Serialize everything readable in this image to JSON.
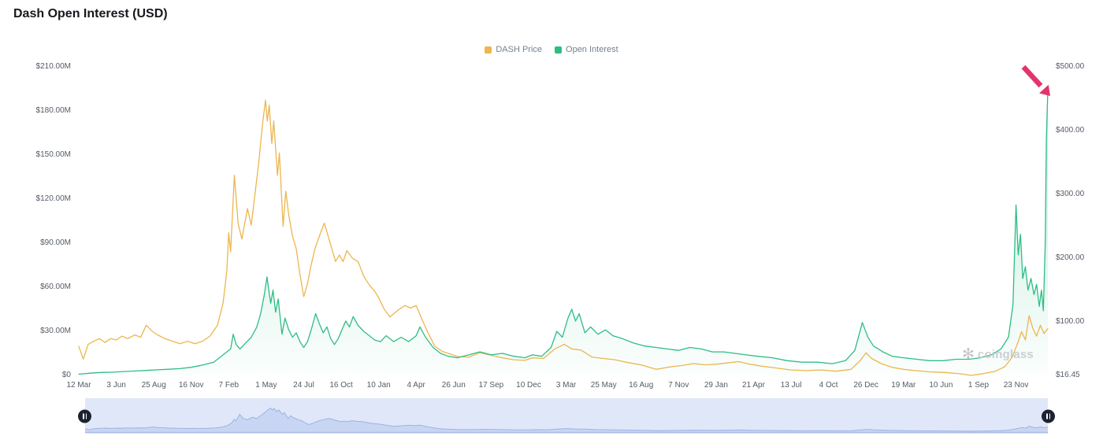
{
  "title": "Dash Open Interest (USD)",
  "watermark": "coinglass",
  "legend": [
    {
      "label": "DASH Price",
      "color": "#ecb64d"
    },
    {
      "label": "Open Interest",
      "color": "#2ebd85"
    }
  ],
  "chart_data": {
    "type": "line",
    "title": "Dash Open Interest (USD)",
    "t_max": 25.85,
    "left_axis": {
      "min": 0,
      "max": 210,
      "unit": "millions USD",
      "ticks": [
        {
          "value": 210,
          "label": "$210.00M"
        },
        {
          "value": 180,
          "label": "$180.00M"
        },
        {
          "value": 150,
          "label": "$150.00M"
        },
        {
          "value": 120,
          "label": "$120.00M"
        },
        {
          "value": 90,
          "label": "$90.00M"
        },
        {
          "value": 60,
          "label": "$60.00M"
        },
        {
          "value": 30,
          "label": "$30.00M"
        },
        {
          "value": 0,
          "label": "$0"
        }
      ]
    },
    "right_axis": {
      "min": 16.45,
      "max": 500,
      "unit": "USD",
      "ticks": [
        {
          "value": 500,
          "label": "$500.00"
        },
        {
          "value": 400,
          "label": "$400.00"
        },
        {
          "value": 300,
          "label": "$300.00"
        },
        {
          "value": 200,
          "label": "$200.00"
        },
        {
          "value": 100,
          "label": "$100.00"
        },
        {
          "value": 16.45,
          "label": "$16.45"
        }
      ]
    },
    "x_axis": {
      "labels": [
        "12 Mar",
        "3 Jun",
        "25 Aug",
        "16 Nov",
        "7 Feb",
        "1 May",
        "24 Jul",
        "16 Oct",
        "10 Jan",
        "4 Apr",
        "26 Jun",
        "17 Sep",
        "10 Dec",
        "3 Mar",
        "25 May",
        "16 Aug",
        "7 Nov",
        "29 Jan",
        "21 Apr",
        "13 Jul",
        "4 Oct",
        "26 Dec",
        "19 Mar",
        "10 Jun",
        "1 Sep",
        "23 Nov"
      ],
      "note": "labels evenly spaced; series point t values are in label-index units"
    },
    "series": [
      {
        "id": "dash-price",
        "name": "DASH Price",
        "axis": "right",
        "color": "#ecb64d",
        "fill": false,
        "points": [
          [
            0,
            62
          ],
          [
            0.12,
            42
          ],
          [
            0.25,
            65
          ],
          [
            0.4,
            70
          ],
          [
            0.55,
            74
          ],
          [
            0.7,
            68
          ],
          [
            0.85,
            74
          ],
          [
            1,
            72
          ],
          [
            1.15,
            78
          ],
          [
            1.3,
            74
          ],
          [
            1.5,
            80
          ],
          [
            1.65,
            76
          ],
          [
            1.8,
            95
          ],
          [
            1.95,
            86
          ],
          [
            2.1,
            80
          ],
          [
            2.3,
            74
          ],
          [
            2.5,
            70
          ],
          [
            2.7,
            66
          ],
          [
            2.9,
            70
          ],
          [
            3.1,
            66
          ],
          [
            3.3,
            70
          ],
          [
            3.5,
            78
          ],
          [
            3.7,
            95
          ],
          [
            3.85,
            130
          ],
          [
            3.95,
            180
          ],
          [
            4,
            240
          ],
          [
            4.05,
            210
          ],
          [
            4.15,
            330
          ],
          [
            4.25,
            255
          ],
          [
            4.35,
            230
          ],
          [
            4.5,
            278
          ],
          [
            4.6,
            252
          ],
          [
            4.7,
            300
          ],
          [
            4.8,
            350
          ],
          [
            4.9,
            410
          ],
          [
            4.98,
            448
          ],
          [
            5.03,
            415
          ],
          [
            5.08,
            440
          ],
          [
            5.15,
            380
          ],
          [
            5.2,
            415
          ],
          [
            5.3,
            330
          ],
          [
            5.35,
            365
          ],
          [
            5.45,
            250
          ],
          [
            5.52,
            305
          ],
          [
            5.6,
            268
          ],
          [
            5.7,
            235
          ],
          [
            5.8,
            215
          ],
          [
            5.9,
            175
          ],
          [
            6,
            140
          ],
          [
            6.1,
            160
          ],
          [
            6.2,
            190
          ],
          [
            6.3,
            215
          ],
          [
            6.45,
            240
          ],
          [
            6.55,
            255
          ],
          [
            6.65,
            235
          ],
          [
            6.75,
            215
          ],
          [
            6.85,
            195
          ],
          [
            6.95,
            205
          ],
          [
            7.05,
            195
          ],
          [
            7.15,
            212
          ],
          [
            7.3,
            200
          ],
          [
            7.45,
            195
          ],
          [
            7.6,
            172
          ],
          [
            7.75,
            158
          ],
          [
            7.9,
            148
          ],
          [
            8,
            138
          ],
          [
            8.15,
            120
          ],
          [
            8.3,
            108
          ],
          [
            8.5,
            118
          ],
          [
            8.7,
            126
          ],
          [
            8.85,
            122
          ],
          [
            9,
            126
          ],
          [
            9.15,
            105
          ],
          [
            9.3,
            85
          ],
          [
            9.5,
            62
          ],
          [
            9.7,
            54
          ],
          [
            9.9,
            50
          ],
          [
            10.1,
            46
          ],
          [
            10.4,
            45
          ],
          [
            10.7,
            52
          ],
          [
            11,
            48
          ],
          [
            11.3,
            44
          ],
          [
            11.6,
            41
          ],
          [
            11.9,
            40
          ],
          [
            12.1,
            44
          ],
          [
            12.4,
            43
          ],
          [
            12.7,
            58
          ],
          [
            12.95,
            65
          ],
          [
            13.15,
            58
          ],
          [
            13.4,
            56
          ],
          [
            13.7,
            45
          ],
          [
            14,
            43
          ],
          [
            14.3,
            41
          ],
          [
            14.6,
            37
          ],
          [
            15,
            33
          ],
          [
            15.4,
            26
          ],
          [
            15.8,
            30
          ],
          [
            16.1,
            32
          ],
          [
            16.4,
            35
          ],
          [
            16.7,
            33
          ],
          [
            17,
            34
          ],
          [
            17.3,
            36
          ],
          [
            17.6,
            38
          ],
          [
            17.9,
            34
          ],
          [
            18.2,
            31
          ],
          [
            18.6,
            28
          ],
          [
            19,
            25
          ],
          [
            19.4,
            24
          ],
          [
            19.8,
            25
          ],
          [
            20.2,
            23
          ],
          [
            20.6,
            26
          ],
          [
            20.85,
            40
          ],
          [
            21,
            52
          ],
          [
            21.15,
            43
          ],
          [
            21.4,
            35
          ],
          [
            21.7,
            29
          ],
          [
            22,
            26
          ],
          [
            22.3,
            24
          ],
          [
            22.7,
            22
          ],
          [
            23.1,
            21
          ],
          [
            23.5,
            19
          ],
          [
            23.8,
            16.45
          ],
          [
            24,
            18
          ],
          [
            24.2,
            20
          ],
          [
            24.45,
            23
          ],
          [
            24.7,
            30
          ],
          [
            24.9,
            45
          ],
          [
            25.05,
            68
          ],
          [
            25.15,
            85
          ],
          [
            25.25,
            72
          ],
          [
            25.35,
            110
          ],
          [
            25.45,
            90
          ],
          [
            25.55,
            78
          ],
          [
            25.65,
            95
          ],
          [
            25.75,
            82
          ],
          [
            25.85,
            90
          ]
        ]
      },
      {
        "id": "open-interest",
        "name": "Open Interest",
        "axis": "left",
        "color": "#2ebd85",
        "fill": true,
        "points": [
          [
            0,
            0.8
          ],
          [
            0.3,
            1.5
          ],
          [
            0.6,
            2
          ],
          [
            0.9,
            2.2
          ],
          [
            1.2,
            2.6
          ],
          [
            1.5,
            3
          ],
          [
            1.8,
            3.4
          ],
          [
            2.1,
            3.8
          ],
          [
            2.4,
            4.2
          ],
          [
            2.7,
            4.6
          ],
          [
            3,
            5.5
          ],
          [
            3.3,
            7
          ],
          [
            3.6,
            9
          ],
          [
            3.8,
            13
          ],
          [
            3.95,
            16
          ],
          [
            4.05,
            18
          ],
          [
            4.12,
            28
          ],
          [
            4.2,
            21
          ],
          [
            4.3,
            18
          ],
          [
            4.45,
            22
          ],
          [
            4.6,
            26
          ],
          [
            4.75,
            33
          ],
          [
            4.85,
            42
          ],
          [
            4.95,
            55
          ],
          [
            5.02,
            67
          ],
          [
            5.08,
            56
          ],
          [
            5.12,
            49
          ],
          [
            5.18,
            58
          ],
          [
            5.25,
            43
          ],
          [
            5.32,
            52
          ],
          [
            5.42,
            28
          ],
          [
            5.5,
            39
          ],
          [
            5.6,
            31
          ],
          [
            5.7,
            26
          ],
          [
            5.8,
            29
          ],
          [
            5.9,
            23
          ],
          [
            6,
            19
          ],
          [
            6.1,
            23
          ],
          [
            6.2,
            31
          ],
          [
            6.32,
            42
          ],
          [
            6.42,
            35
          ],
          [
            6.52,
            29
          ],
          [
            6.62,
            33
          ],
          [
            6.72,
            25
          ],
          [
            6.82,
            21
          ],
          [
            6.92,
            25
          ],
          [
            7.02,
            31
          ],
          [
            7.12,
            37
          ],
          [
            7.22,
            33
          ],
          [
            7.32,
            40
          ],
          [
            7.45,
            34
          ],
          [
            7.6,
            30
          ],
          [
            7.75,
            27
          ],
          [
            7.9,
            24
          ],
          [
            8.05,
            23
          ],
          [
            8.2,
            27
          ],
          [
            8.4,
            23
          ],
          [
            8.6,
            26
          ],
          [
            8.8,
            23
          ],
          [
            9,
            27
          ],
          [
            9.1,
            33
          ],
          [
            9.25,
            26
          ],
          [
            9.45,
            19
          ],
          [
            9.65,
            15
          ],
          [
            9.85,
            13
          ],
          [
            10.1,
            12
          ],
          [
            10.4,
            14
          ],
          [
            10.7,
            16
          ],
          [
            11,
            14
          ],
          [
            11.3,
            15
          ],
          [
            11.6,
            13
          ],
          [
            11.9,
            12
          ],
          [
            12.1,
            14
          ],
          [
            12.35,
            13
          ],
          [
            12.6,
            19
          ],
          [
            12.75,
            30
          ],
          [
            12.9,
            26
          ],
          [
            13.05,
            39
          ],
          [
            13.15,
            45
          ],
          [
            13.25,
            37
          ],
          [
            13.35,
            42
          ],
          [
            13.5,
            29
          ],
          [
            13.65,
            33
          ],
          [
            13.85,
            28
          ],
          [
            14.05,
            31
          ],
          [
            14.25,
            27
          ],
          [
            14.5,
            25
          ],
          [
            14.8,
            22
          ],
          [
            15.1,
            20
          ],
          [
            15.4,
            19
          ],
          [
            15.7,
            18
          ],
          [
            16,
            17
          ],
          [
            16.3,
            19
          ],
          [
            16.6,
            18
          ],
          [
            16.9,
            16
          ],
          [
            17.2,
            16
          ],
          [
            17.5,
            15
          ],
          [
            17.8,
            14
          ],
          [
            18.1,
            13
          ],
          [
            18.5,
            12
          ],
          [
            18.9,
            10
          ],
          [
            19.3,
            9
          ],
          [
            19.7,
            9
          ],
          [
            20.1,
            8
          ],
          [
            20.45,
            10
          ],
          [
            20.7,
            17
          ],
          [
            20.9,
            36
          ],
          [
            21.05,
            26
          ],
          [
            21.2,
            20
          ],
          [
            21.45,
            16
          ],
          [
            21.7,
            13
          ],
          [
            22,
            12
          ],
          [
            22.35,
            11
          ],
          [
            22.7,
            10
          ],
          [
            23.05,
            10
          ],
          [
            23.4,
            11
          ],
          [
            23.75,
            11
          ],
          [
            24.05,
            12
          ],
          [
            24.35,
            14
          ],
          [
            24.6,
            18
          ],
          [
            24.8,
            26
          ],
          [
            24.92,
            48
          ],
          [
            25,
            116
          ],
          [
            25.06,
            82
          ],
          [
            25.12,
            96
          ],
          [
            25.18,
            66
          ],
          [
            25.25,
            74
          ],
          [
            25.32,
            58
          ],
          [
            25.4,
            66
          ],
          [
            25.48,
            55
          ],
          [
            25.55,
            62
          ],
          [
            25.62,
            47
          ],
          [
            25.68,
            58
          ],
          [
            25.73,
            44
          ],
          [
            25.78,
            90
          ],
          [
            25.81,
            160
          ],
          [
            25.85,
            195
          ]
        ]
      }
    ],
    "annotation": {
      "type": "arrow",
      "color": "#e2356b",
      "description": "red arrow highlighting the open interest spike at the far right"
    }
  }
}
